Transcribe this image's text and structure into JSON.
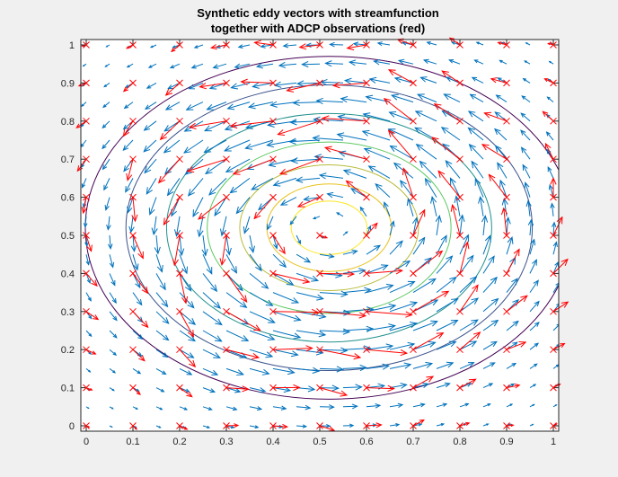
{
  "window": {
    "background": "#f0f0f0"
  },
  "chart_data": {
    "type": "quiver",
    "title": [
      "Synthetic eddy vectors with streamfunction",
      "together with ADCP observations (red)"
    ],
    "xlabel": "",
    "ylabel": "",
    "xlim": [
      0,
      1
    ],
    "ylim": [
      0,
      1
    ],
    "xticks": [
      "0",
      "0.1",
      "0.2",
      "0.3",
      "0.4",
      "0.5",
      "0.6",
      "0.7",
      "0.8",
      "0.9",
      "1"
    ],
    "yticks": [
      "0",
      "0.1",
      "0.2",
      "0.3",
      "0.4",
      "0.5",
      "0.6",
      "0.7",
      "0.8",
      "0.9",
      "1"
    ],
    "grid": false,
    "legend": "none",
    "eddy_center": [
      0.52,
      0.52
    ],
    "rotation": "counterclockwise",
    "vector_field": {
      "name": "Synthetic eddy vectors",
      "color": "#0072bd",
      "grid_spacing": 0.05,
      "x_range": [
        0,
        1
      ],
      "y_range": [
        0,
        1
      ]
    },
    "streamfunction_contours": {
      "levels": [
        0.14,
        0.23,
        0.33,
        0.45,
        0.6,
        0.75,
        0.9
      ],
      "colors": [
        "#fde725",
        "#e8c21a",
        "#b7bc3b",
        "#5ec962",
        "#21918c",
        "#3b528b",
        "#440154"
      ]
    },
    "adcp_observations": {
      "name": "ADCP observations",
      "color": "#ff0000",
      "marker": "x",
      "grid_spacing": 0.1,
      "x_range": [
        0,
        1
      ],
      "y_range": [
        0,
        1
      ]
    },
    "colors": {
      "axes_background": "#ffffff",
      "axes_edge": "#262626",
      "vectors": "#0072bd",
      "observations": "#ff0000"
    }
  }
}
